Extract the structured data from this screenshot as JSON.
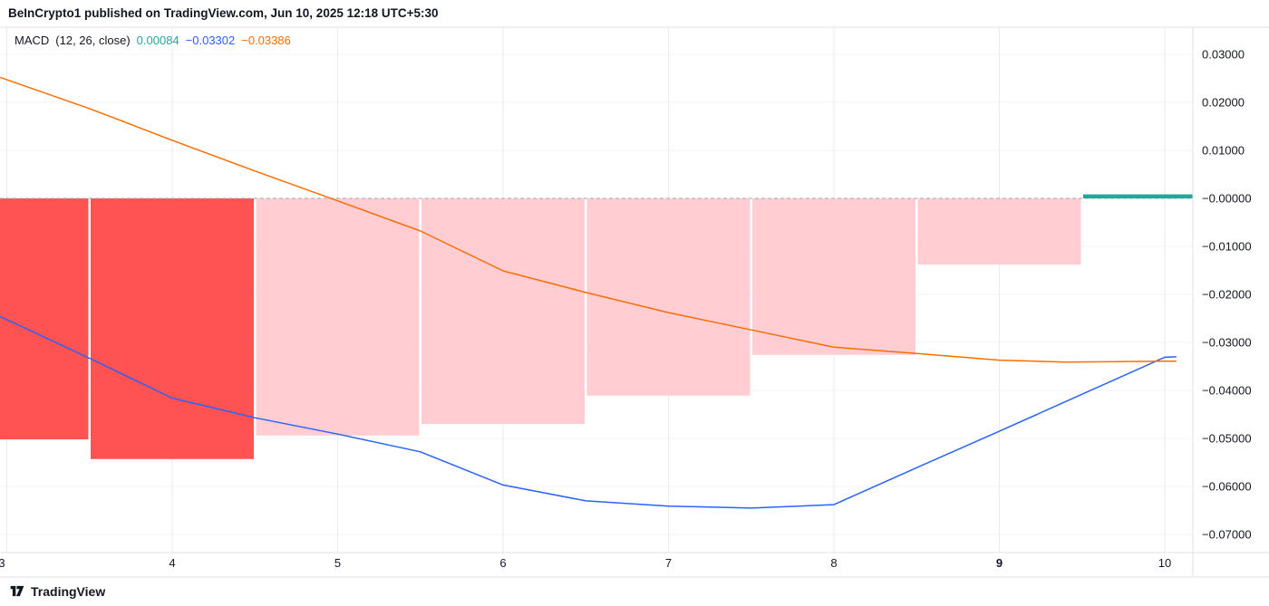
{
  "header": {
    "attribution": "BeInCrypto1 published on TradingView.com, Jun 10, 2025 12:18 UTC+5:30"
  },
  "legend": {
    "title": "MACD",
    "params": "(12, 26, close)",
    "values": [
      {
        "name": "histogram",
        "text": "0.00084",
        "color": "#26A69A"
      },
      {
        "name": "macd",
        "text": "−0.03302",
        "color": "#2962FF"
      },
      {
        "name": "signal",
        "text": "−0.03386",
        "color": "#FF6D00"
      }
    ]
  },
  "footer": {
    "logo_text": "TradingView"
  },
  "chart_data": {
    "type": "bar",
    "subtype": "macd-indicator-panel-with-lines",
    "title": "MACD (12, 26, close)",
    "x_axis": {
      "ticks": [
        {
          "label": "3",
          "x": 3,
          "bold": false,
          "clipped": true
        },
        {
          "label": "4",
          "x": 4,
          "bold": false
        },
        {
          "label": "5",
          "x": 5,
          "bold": false
        },
        {
          "label": "6",
          "x": 6,
          "bold": false
        },
        {
          "label": "7",
          "x": 7,
          "bold": false
        },
        {
          "label": "8",
          "x": 8,
          "bold": false
        },
        {
          "label": "9",
          "x": 9,
          "bold": true
        },
        {
          "label": "10",
          "x": 10,
          "bold": false
        }
      ]
    },
    "y_axis": {
      "ticks": [
        {
          "label": "0.03000",
          "value": 0.03
        },
        {
          "label": "0.02000",
          "value": 0.02
        },
        {
          "label": "0.01000",
          "value": 0.01
        },
        {
          "label": "−0.00000",
          "value": 0.0
        },
        {
          "label": "−0.01000",
          "value": -0.01
        },
        {
          "label": "−0.02000",
          "value": -0.02
        },
        {
          "label": "−0.03000",
          "value": -0.03
        },
        {
          "label": "−0.04000",
          "value": -0.04
        },
        {
          "label": "−0.05000",
          "value": -0.05
        },
        {
          "label": "−0.06000",
          "value": -0.06
        },
        {
          "label": "−0.07000",
          "value": -0.07
        }
      ],
      "range": [
        -0.075,
        0.036
      ]
    },
    "histogram": {
      "bars": [
        {
          "x": 3,
          "value": -0.0502,
          "color": "hist_fall_below"
        },
        {
          "x": 4,
          "value": -0.0543,
          "color": "hist_fall_below"
        },
        {
          "x": 5,
          "value": -0.0494,
          "color": "hist_rise_below"
        },
        {
          "x": 6,
          "value": -0.047,
          "color": "hist_rise_below"
        },
        {
          "x": 7,
          "value": -0.0411,
          "color": "hist_rise_below"
        },
        {
          "x": 8,
          "value": -0.0326,
          "color": "hist_rise_below"
        },
        {
          "x": 9,
          "value": -0.0138,
          "color": "hist_rise_below"
        },
        {
          "x": 10,
          "value": 0.00084,
          "color": "hist_rise_above"
        }
      ],
      "current_value": 0.00084
    },
    "series": [
      {
        "name": "MACD",
        "color": "#2962FF",
        "current_value": -0.03302,
        "points": [
          [
            2.96,
            -0.0246
          ],
          [
            3.5,
            -0.0333
          ],
          [
            4,
            -0.0416
          ],
          [
            4.5,
            -0.0457
          ],
          [
            5,
            -0.0491
          ],
          [
            5.5,
            -0.0528
          ],
          [
            6,
            -0.0597
          ],
          [
            6.5,
            -0.063
          ],
          [
            7,
            -0.0641
          ],
          [
            7.5,
            -0.0645
          ],
          [
            8,
            -0.0638
          ],
          [
            8.5,
            -0.0561
          ],
          [
            9,
            -0.0485
          ],
          [
            9.5,
            -0.0408
          ],
          [
            10,
            -0.0331
          ],
          [
            10.07,
            -0.033
          ]
        ]
      },
      {
        "name": "Signal",
        "color": "#FF6D00",
        "current_value": -0.03386,
        "points": [
          [
            2.96,
            0.0252
          ],
          [
            3.5,
            0.0187
          ],
          [
            4,
            0.0121
          ],
          [
            4.5,
            0.0057
          ],
          [
            5,
            -0.0005
          ],
          [
            5.5,
            -0.0068
          ],
          [
            6,
            -0.0151
          ],
          [
            6.5,
            -0.0196
          ],
          [
            7,
            -0.0238
          ],
          [
            7.5,
            -0.0274
          ],
          [
            8,
            -0.031
          ],
          [
            8.5,
            -0.0323
          ],
          [
            9,
            -0.0337
          ],
          [
            9.4,
            -0.0341
          ],
          [
            10,
            -0.0339
          ],
          [
            10.07,
            -0.0339
          ]
        ]
      }
    ],
    "zero_line": {
      "value": 0,
      "style": "dashed"
    },
    "colors": {
      "hist_fall_below": "#FF5252",
      "hist_rise_below": "#FFCDD2",
      "hist_rise_above": "#26A69A",
      "macd_line": "#2962FF",
      "signal_line": "#FF6D00",
      "grid_v": "#E8EBF0",
      "grid_h": "#F1F3F7",
      "zero_line": "#A5A8B0",
      "border": "#DDE0E6",
      "text": "#131722"
    }
  }
}
